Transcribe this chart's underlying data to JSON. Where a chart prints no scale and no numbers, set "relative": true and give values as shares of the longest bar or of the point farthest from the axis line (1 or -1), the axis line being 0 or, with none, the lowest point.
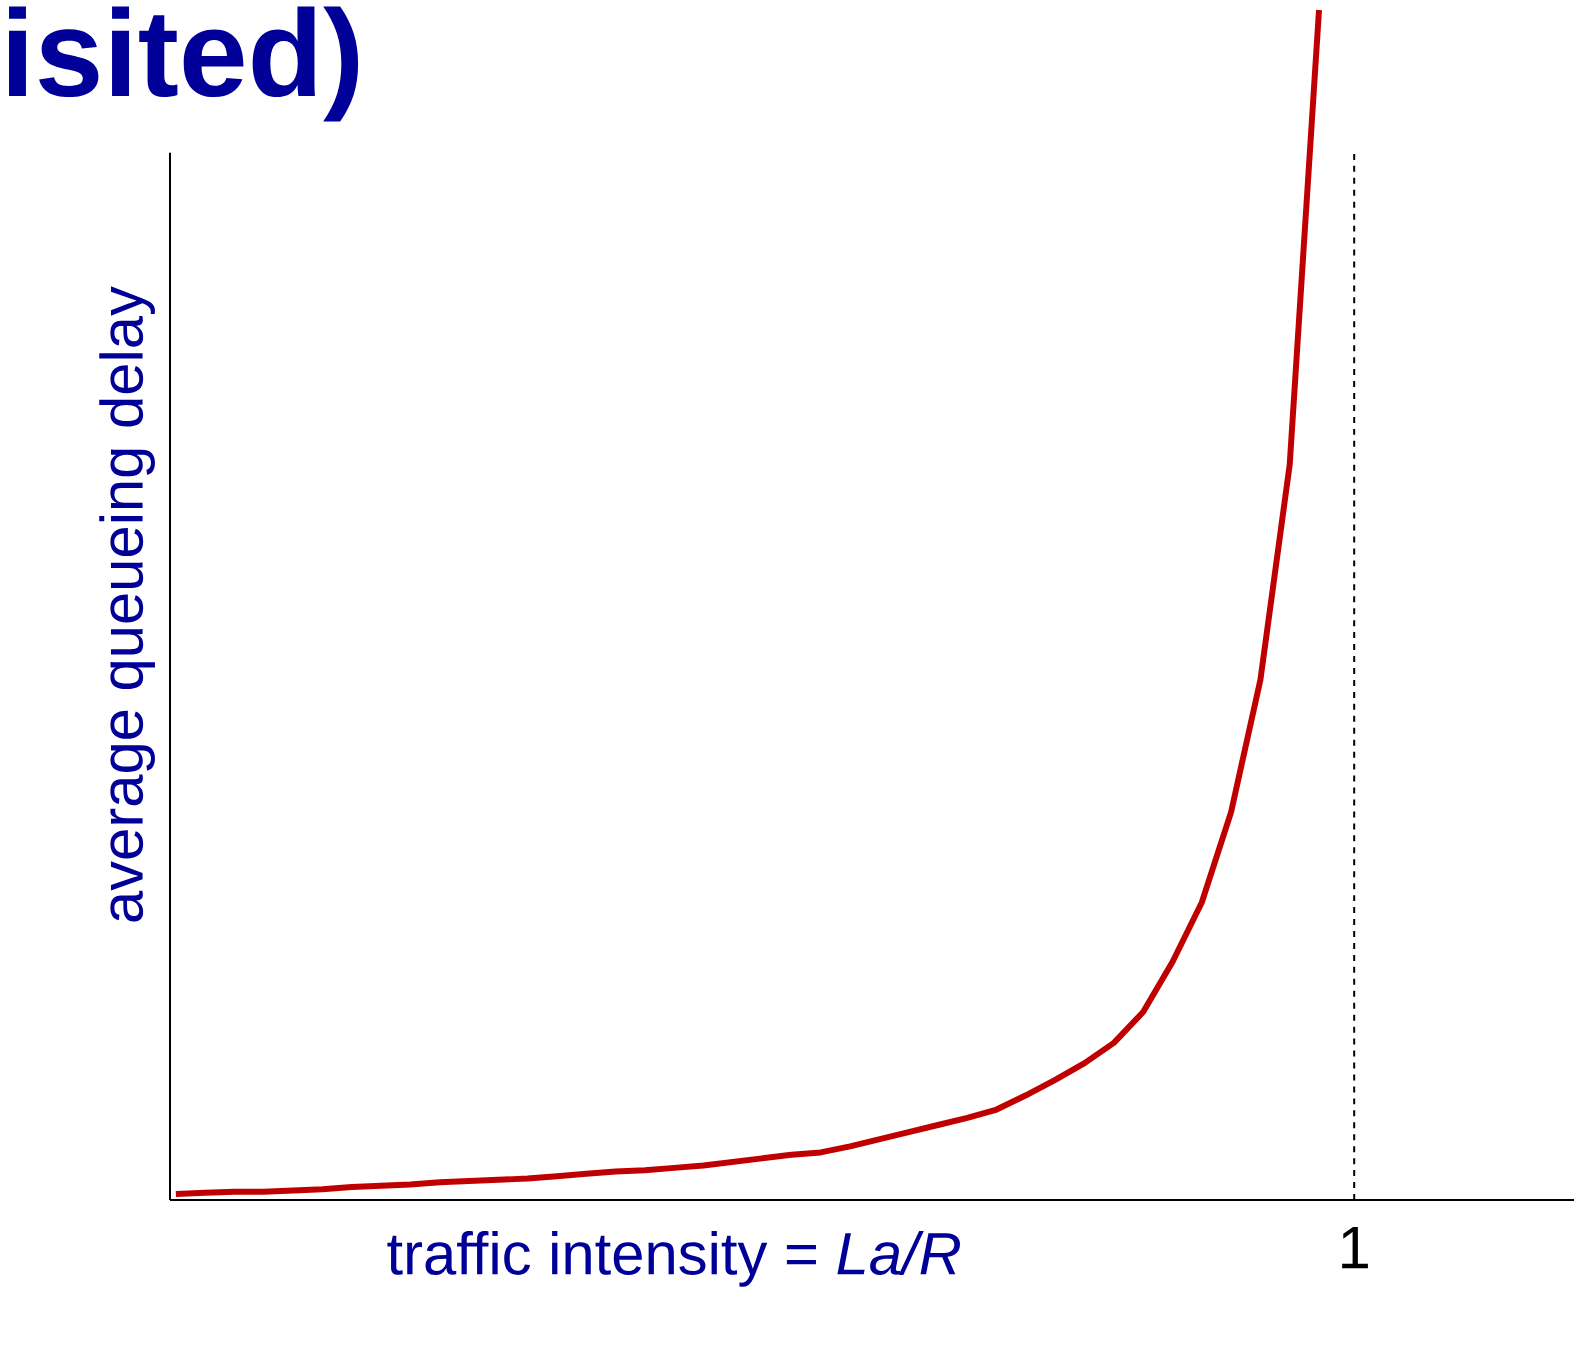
{
  "chart_data": {
    "type": "line",
    "title": "isited)",
    "xlabel": "traffic intensity = *La/R*",
    "ylabel": "average  queueing delay",
    "relative": true,
    "categories": [
      null,
      null,
      null,
      null,
      null,
      null,
      null,
      null,
      null,
      null,
      null,
      null,
      null,
      null,
      null,
      null,
      null,
      null,
      null,
      null,
      null,
      null,
      null,
      null,
      null,
      null,
      null,
      null,
      null,
      null,
      null,
      null,
      null,
      null,
      null,
      null,
      null,
      null,
      null,
      null
    ],
    "series": [
      {
        "color": "#c00000",
        "values": [
          0.005,
          0.006,
          0.007,
          0.007,
          0.008,
          0.009,
          0.011,
          0.012,
          0.013,
          0.015,
          0.016,
          0.017,
          0.018,
          0.02,
          0.022,
          0.024,
          0.025,
          0.027,
          0.029,
          0.032,
          0.035,
          0.038,
          0.04,
          0.045,
          0.051,
          0.057,
          0.063,
          0.069,
          0.076,
          0.088,
          0.101,
          0.115,
          0.132,
          0.158,
          0.2,
          0.25,
          0.326,
          0.437,
          0.618,
          1.0
        ]
      }
    ],
    "annotations": [
      "1"
    ],
    "marker": "none",
    "line_style": "solid"
  }
}
